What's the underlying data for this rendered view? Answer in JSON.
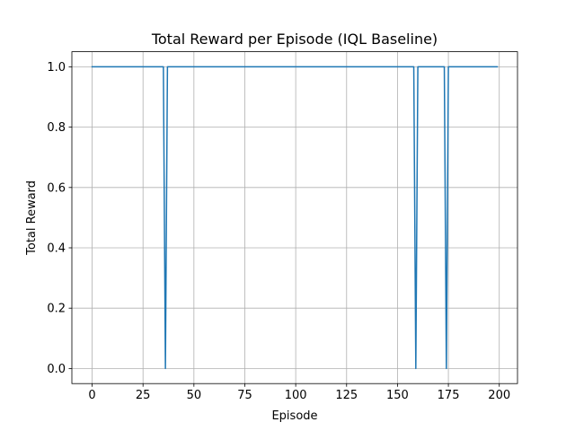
{
  "chart_data": {
    "type": "line",
    "title": "Total Reward per Episode (IQL Baseline)",
    "xlabel": "Episode",
    "ylabel": "Total Reward",
    "xlim": [
      -9.95,
      208.95
    ],
    "ylim": [
      -0.05,
      1.05
    ],
    "xticks": [
      0,
      25,
      50,
      75,
      100,
      125,
      150,
      175,
      200
    ],
    "yticks": [
      0.0,
      0.2,
      0.4,
      0.6,
      0.8,
      1.0
    ],
    "xtick_labels": [
      "0",
      "25",
      "50",
      "75",
      "100",
      "125",
      "150",
      "175",
      "200"
    ],
    "ytick_labels": [
      "0.0",
      "0.2",
      "0.4",
      "0.6",
      "0.8",
      "1.0"
    ],
    "grid": true,
    "legend": "none",
    "series": [
      {
        "color": "#1f77b4",
        "x": [
          0,
          35,
          36,
          37,
          158,
          159,
          160,
          173,
          174,
          175,
          199
        ],
        "y": [
          1,
          1,
          0,
          1,
          1,
          0,
          1,
          1,
          0,
          1,
          1
        ],
        "note_values": "reward is 1.0 for every episode 0-199 except episodes 36, 159 and 174 where it is 0.0"
      }
    ]
  }
}
